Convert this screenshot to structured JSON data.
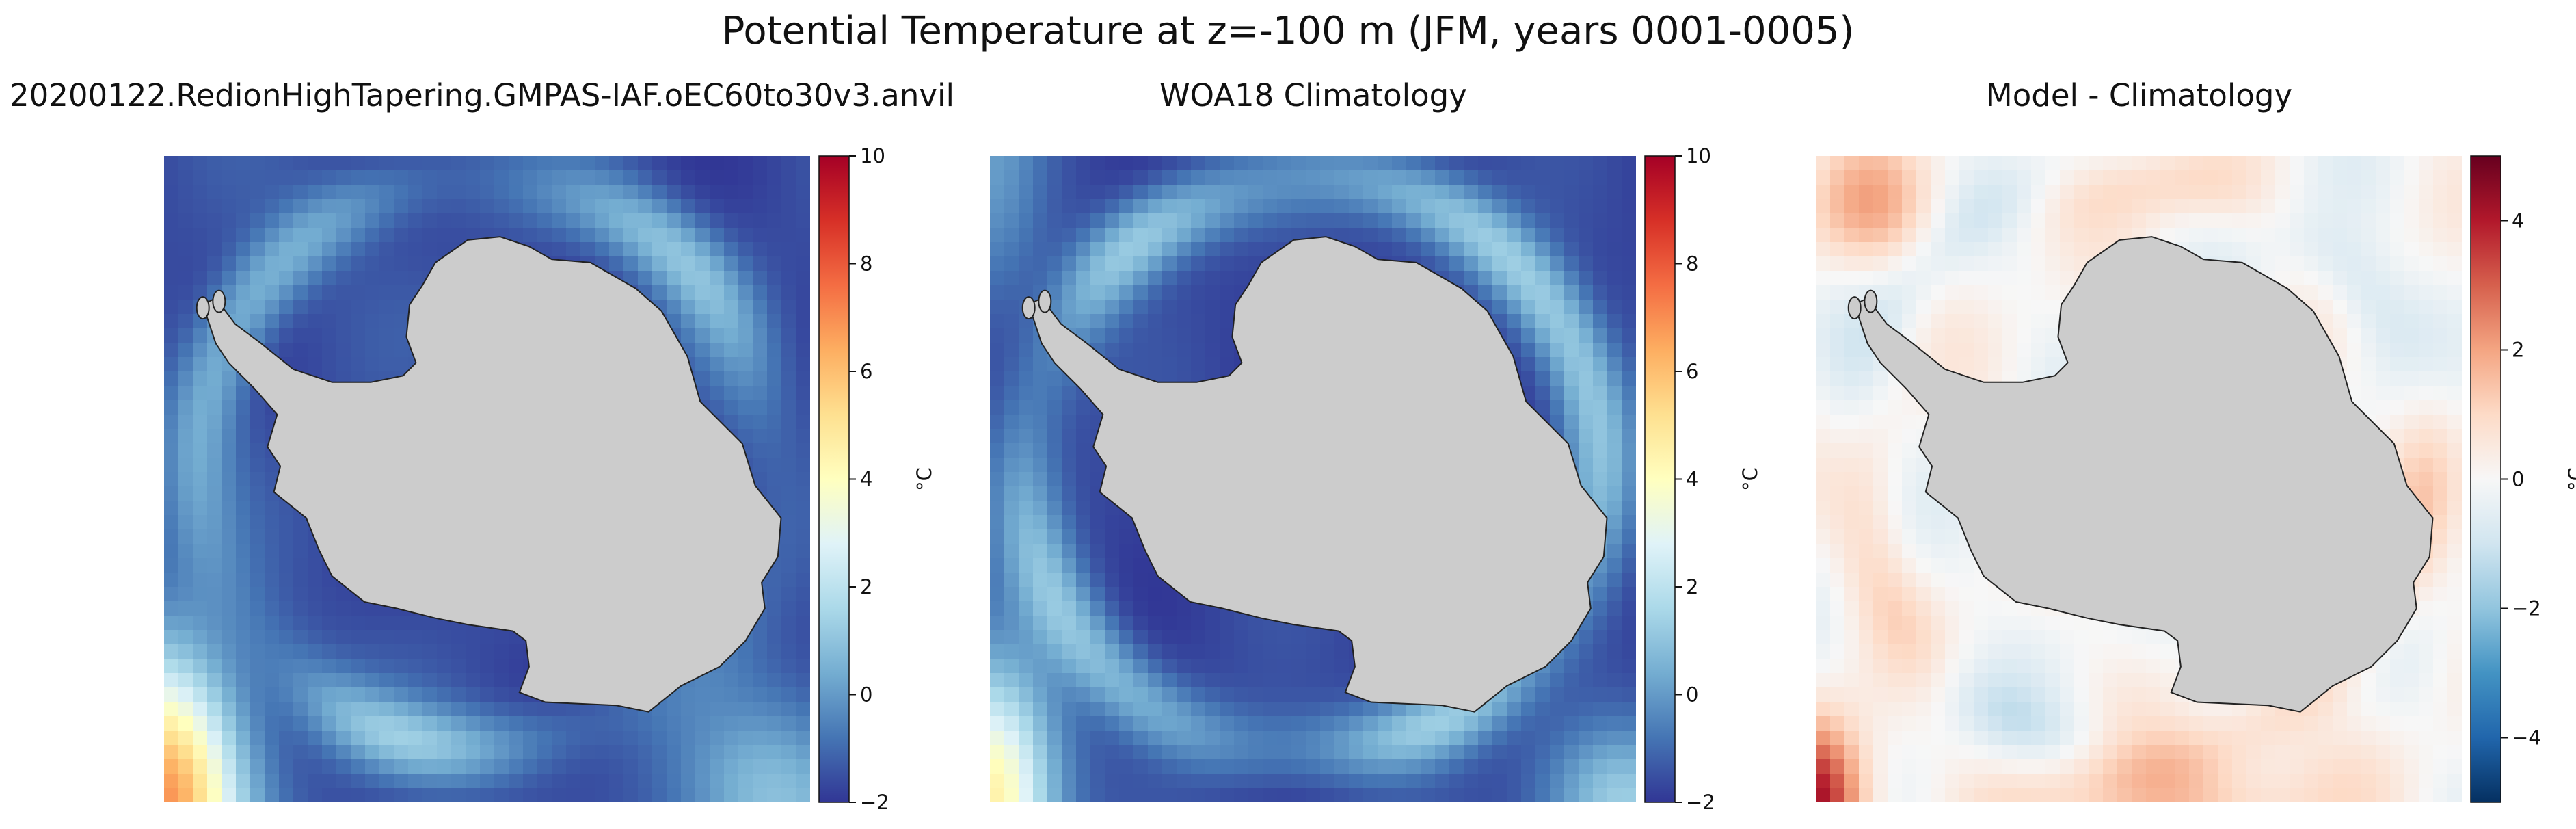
{
  "figure_title": "Potential Temperature at z=-100 m (JFM, years 0001-0005)",
  "colors": {
    "land": "#cccccc",
    "coast": "#222222",
    "rdylbu_r": [
      "#313695",
      "#4575b4",
      "#74add1",
      "#abd9e9",
      "#e0f3f8",
      "#ffffbf",
      "#fee090",
      "#fdae61",
      "#f46d43",
      "#d73027",
      "#a50026"
    ],
    "rdbu_r": [
      "#053061",
      "#2166ac",
      "#4393c3",
      "#92c5de",
      "#d1e5f0",
      "#f7f7f7",
      "#fddbc7",
      "#f4a582",
      "#d6604d",
      "#b2182b",
      "#67001f"
    ]
  },
  "chart_data": [
    {
      "type": "heatmap",
      "projection": "south-polar-stereographic",
      "title": "20200122.RedionHighTapering.GMPAS-IAF.oEC60to30v3.anvil",
      "colormap": "RdYlBu_r",
      "colorbar_label": "°C",
      "vmin": -2,
      "vmax": 10,
      "colorbar_ticks": [
        -2,
        0,
        2,
        4,
        6,
        8,
        10
      ],
      "colorbar_tick_labels": [
        "−2",
        "0",
        "2",
        "4",
        "6",
        "8",
        "10"
      ],
      "field_notes": "mostly -2 to 0 °C near Antarctica; warmer (up to ~7 °C) toward the lower-left corner"
    },
    {
      "type": "heatmap",
      "projection": "south-polar-stereographic",
      "title": "WOA18 Climatology",
      "colormap": "RdYlBu_r",
      "colorbar_label": "°C",
      "vmin": -2,
      "vmax": 10,
      "colorbar_ticks": [
        -2,
        0,
        2,
        4,
        6,
        8,
        10
      ],
      "colorbar_tick_labels": [
        "−2",
        "0",
        "2",
        "4",
        "6",
        "8",
        "10"
      ],
      "field_notes": "mostly -2 to 0 °C; ring of ~1-2 °C along the Antarctic Circumpolar Current"
    },
    {
      "type": "heatmap",
      "projection": "south-polar-stereographic",
      "title": "Model - Climatology",
      "colormap": "RdBu_r",
      "colorbar_label": "°C",
      "vmin": -5,
      "vmax": 5,
      "colorbar_ticks": [
        -4,
        -2,
        0,
        2,
        4
      ],
      "colorbar_tick_labels": [
        "−4",
        "−2",
        "0",
        "2",
        "4"
      ],
      "field_notes": "differences mostly within ±2 °C; strongest warm bias (~4 °C) in lower-left corner"
    }
  ]
}
